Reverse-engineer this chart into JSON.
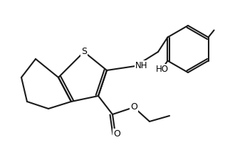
{
  "bg_color": "#ffffff",
  "line_color": "#1a1a1a",
  "line_width": 1.5,
  "atoms": {
    "S": {
      "label": "S",
      "fontsize": 9
    },
    "O": {
      "label": "O",
      "fontsize": 9
    },
    "N": {
      "label": "NH",
      "fontsize": 9
    },
    "HO": {
      "label": "HO",
      "fontsize": 9
    },
    "CH3": {
      "label": "",
      "fontsize": 9
    }
  }
}
